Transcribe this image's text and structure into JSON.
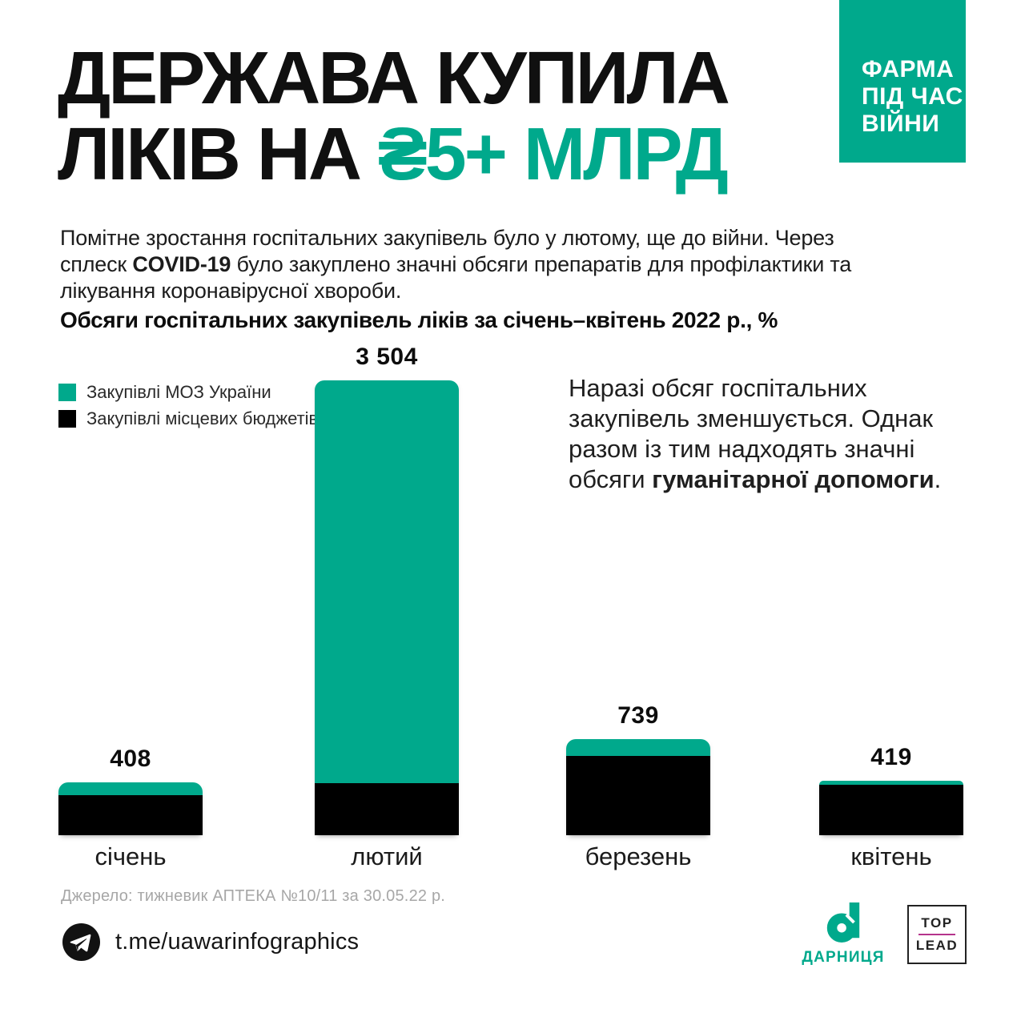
{
  "colors": {
    "accent": "#00a98c",
    "bar_black": "#050505",
    "toplead_divider": "#b5348c",
    "source_gray": "#a7a7a7"
  },
  "badge": {
    "lines": [
      "ФАРМА",
      "ПІД ЧАС",
      "ВІЙНИ"
    ]
  },
  "title": {
    "line1": "ДЕРЖАВА КУПИЛА",
    "line2_black": "ЛІКІВ НА ",
    "line2_accent": "₴5+ МЛРД"
  },
  "intro": {
    "pre": "Помітне зростання госпітальних закупівель було у лютому, ще до війни. Через сплеск ",
    "bold": "COVID-19",
    "post": " було закуплено значні обсяги препаратів для профілактики та лікування коронавірусної хвороби."
  },
  "chart_title": "Обсяги госпітальних закупівель ліків за січень–квітень 2022 р., %",
  "legend": [
    {
      "label": "Закупівлі МОЗ України",
      "color": "#00a98c"
    },
    {
      "label": "Закупівлі місцевих бюджетів",
      "color": "#000000"
    }
  ],
  "side_note": {
    "pre": "Наразі обсяг госпітальних закупівель зменшується. Однак разом із тим надходять значні обсяги ",
    "bold": "гуманітарної допомоги",
    "post": "."
  },
  "chart_data": {
    "type": "bar",
    "stacked": true,
    "categories": [
      "січень",
      "лютий",
      "березень",
      "квітень"
    ],
    "totals": [
      408,
      3504,
      739,
      419
    ],
    "total_labels": [
      "408",
      "3 504",
      "739",
      "419"
    ],
    "series": [
      {
        "name": "Закупівлі МОЗ України",
        "color": "#00a98c",
        "values": [
          97,
          3100,
          125,
          32
        ]
      },
      {
        "name": "Закупівлі місцевих бюджетів",
        "color": "#000000",
        "values": [
          311,
          404,
          614,
          387
        ]
      }
    ],
    "value_labels_position": "above-bar",
    "note": "segment split estimated from bar proportions; labeled totals are exact"
  },
  "source": "Джерело: тижневик АПТЕКА №10/11 за 30.05.22 р.",
  "footer": {
    "telegram_url": "t.me/uawarinfographics",
    "darnytsia_label": "дарниця",
    "toplead_top": "TOP",
    "toplead_lead": "LEAD"
  }
}
